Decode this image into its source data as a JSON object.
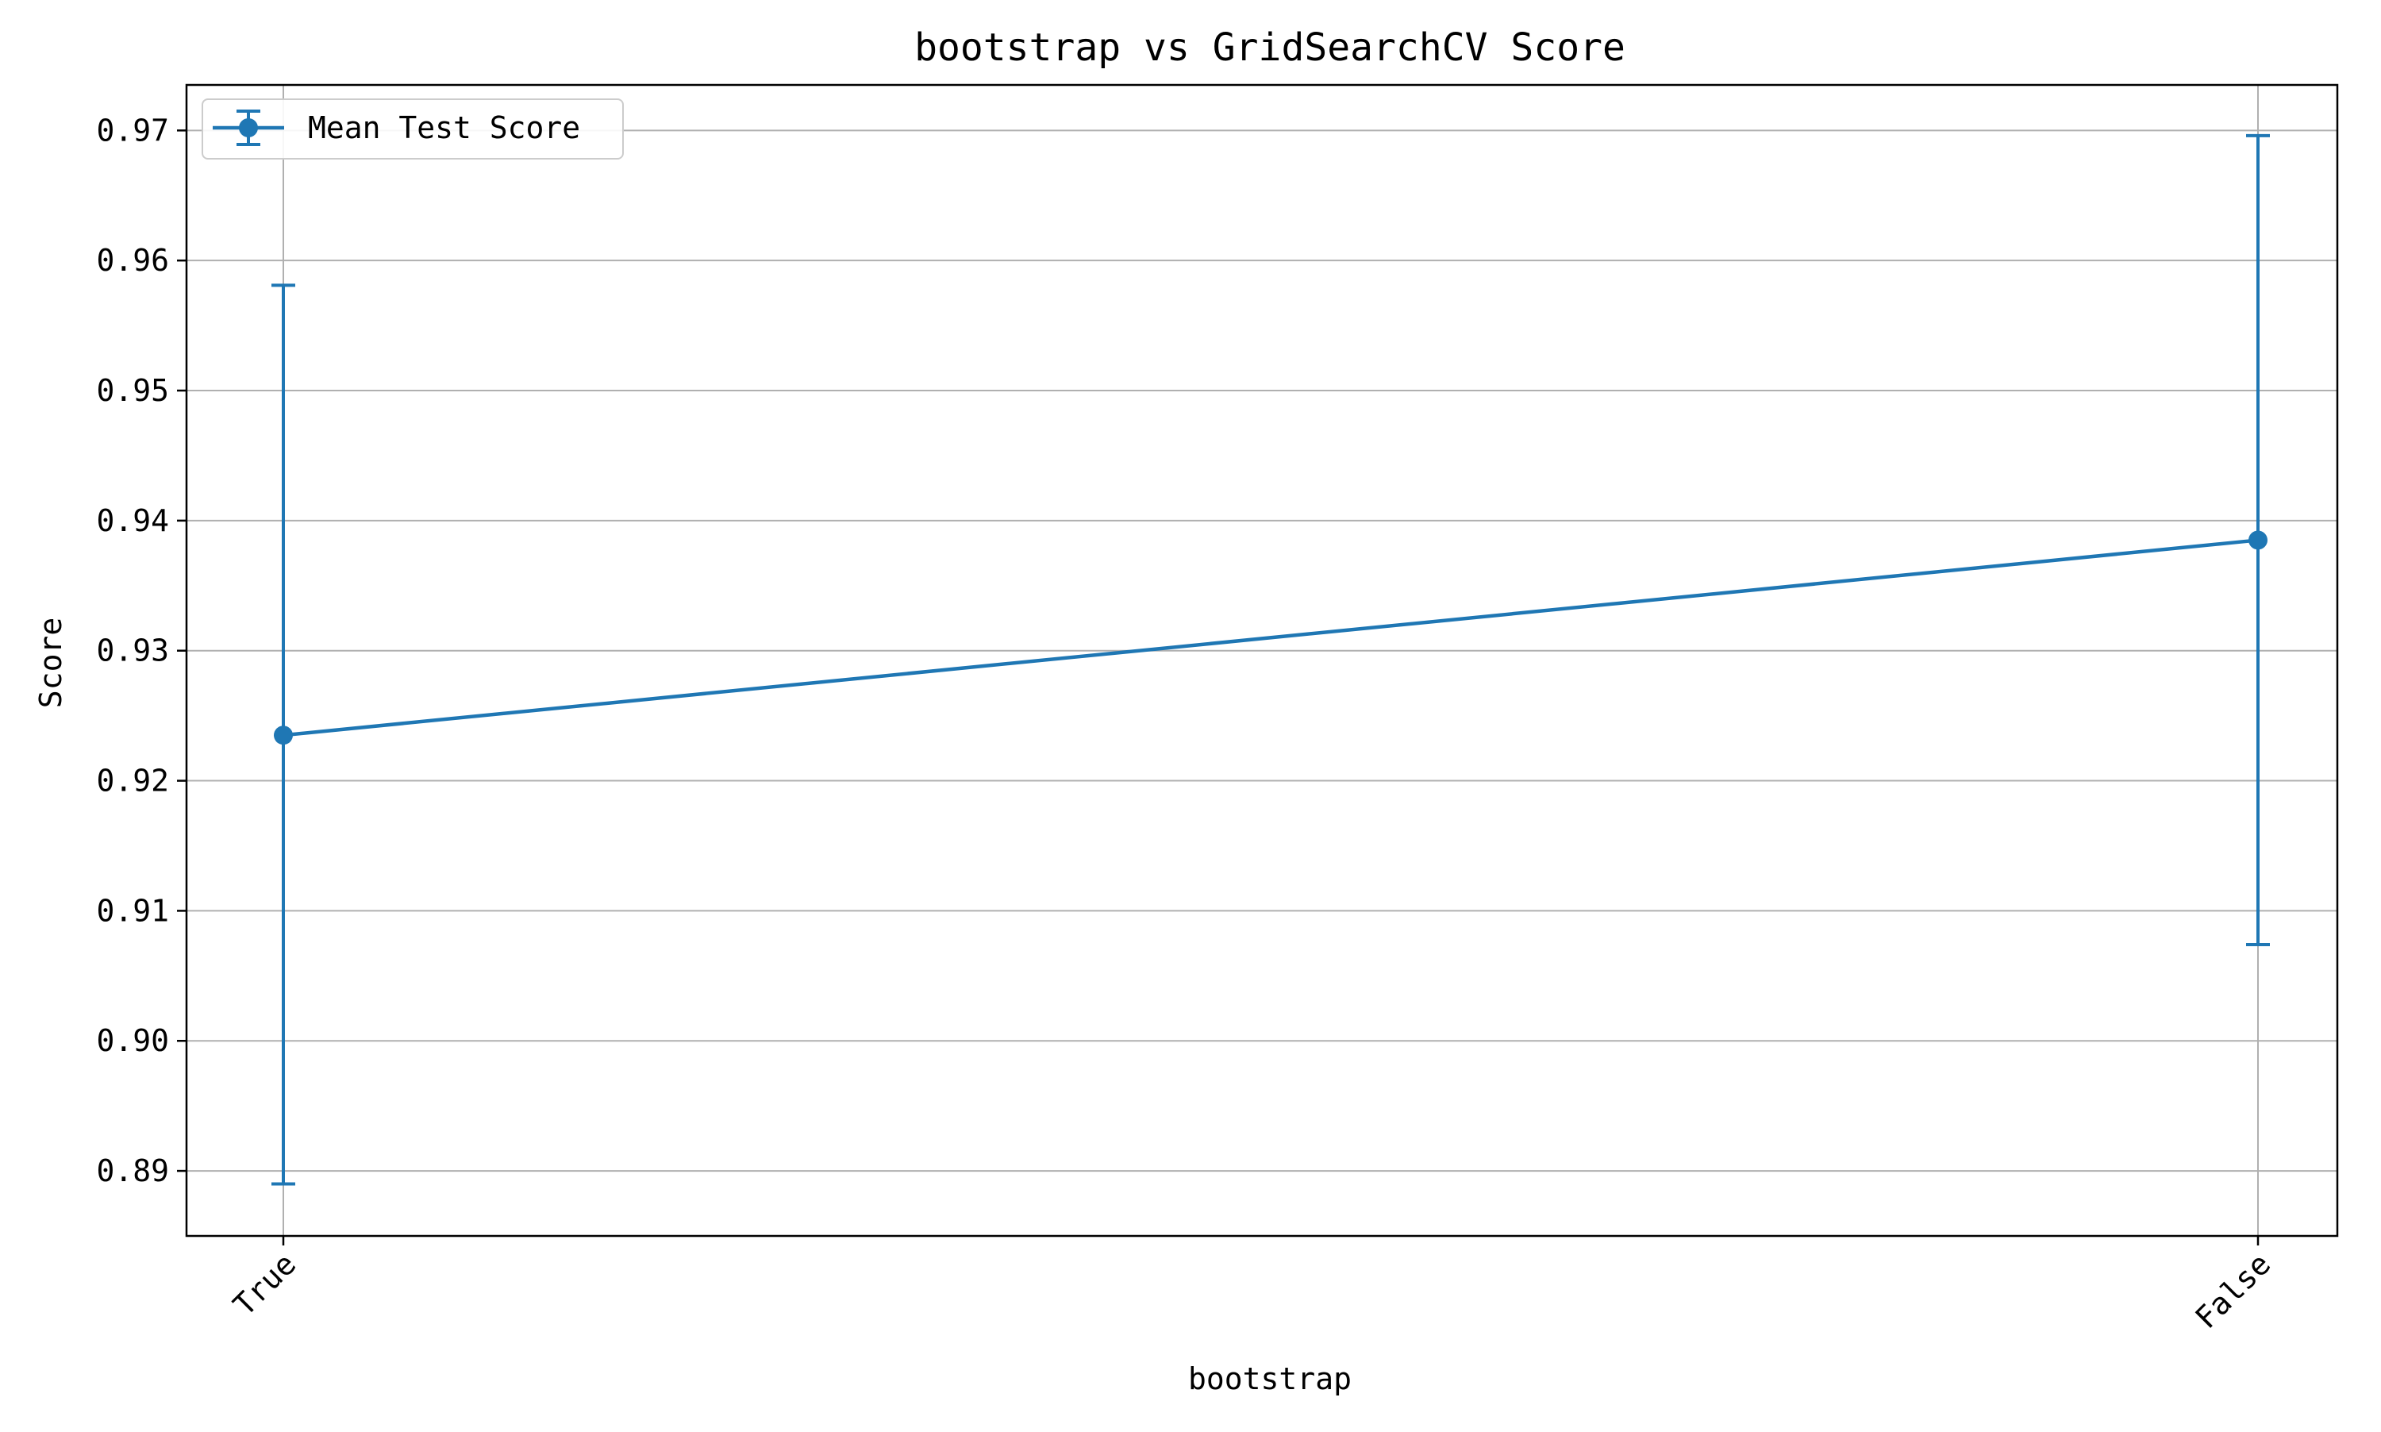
{
  "chart_data": {
    "type": "line",
    "title": "bootstrap vs GridSearchCV Score",
    "xlabel": "bootstrap",
    "ylabel": "Score",
    "categories": [
      "True",
      "False"
    ],
    "series": [
      {
        "name": "Mean Test Score",
        "values": [
          0.9235,
          0.9385
        ],
        "error_lower": [
          0.889,
          0.9074
        ],
        "error_upper": [
          0.9581,
          0.9696
        ]
      }
    ],
    "ylim": [
      0.885,
      0.9735
    ],
    "yticks": [
      "0.89",
      "0.90",
      "0.91",
      "0.92",
      "0.93",
      "0.94",
      "0.95",
      "0.96",
      "0.97"
    ],
    "grid": true,
    "legend_position": "top-left",
    "colors": {
      "series": "#1f77b4",
      "grid": "#b0b0b0",
      "axes": "#000000"
    }
  }
}
